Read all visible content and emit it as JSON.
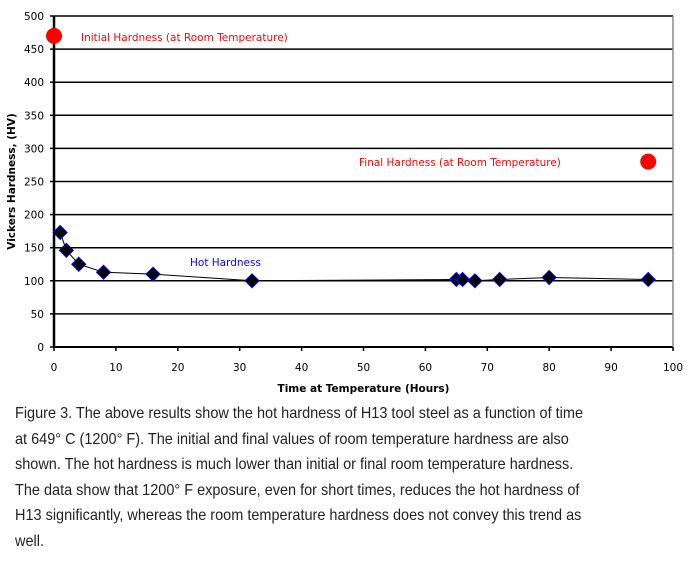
{
  "chart_data": {
    "type": "scatter",
    "xlabel": "Time at Temperature (Hours)",
    "ylabel": "Vickers Hardness, (HV)",
    "xlim": [
      0,
      100
    ],
    "ylim": [
      0,
      500
    ],
    "xticks": [
      0,
      10,
      20,
      30,
      40,
      50,
      60,
      70,
      80,
      90,
      100
    ],
    "yticks": [
      0,
      50,
      100,
      150,
      200,
      250,
      300,
      350,
      400,
      450,
      500
    ],
    "grid": "horizontal",
    "series": [
      {
        "name": "Hot Hardness",
        "color": "#000000",
        "edge_color": "#0000ff",
        "label_color": "#0000ff",
        "marker": "diamond",
        "line": true,
        "x": [
          1,
          2,
          4,
          8,
          16,
          32,
          65,
          66,
          68,
          72,
          80,
          96
        ],
        "y": [
          173,
          146,
          125,
          113,
          110,
          100,
          102,
          102,
          100,
          102,
          105,
          102
        ]
      },
      {
        "name": "Initial Hardness (at Room Temperature)",
        "color": "#ff0000",
        "marker": "circle",
        "x": [
          0
        ],
        "y": [
          470
        ]
      },
      {
        "name": "Final Hardness (at Room Temperature)",
        "color": "#ff0000",
        "marker": "circle",
        "x": [
          96
        ],
        "y": [
          280
        ]
      }
    ]
  },
  "caption": [
    "Figure 3.  The above results show the hot hardness of H13 tool steel as a function of time",
    "at 649° C (1200° F).  The initial and final values of room temperature hardness are also",
    "shown.  The hot hardness is much lower than initial or final room temperature hardness.",
    "The data show that 1200° F exposure, even for short times, reduces the hot hardness of",
    "H13 significantly, whereas the room temperature hardness does not convey this trend as",
    "well."
  ]
}
